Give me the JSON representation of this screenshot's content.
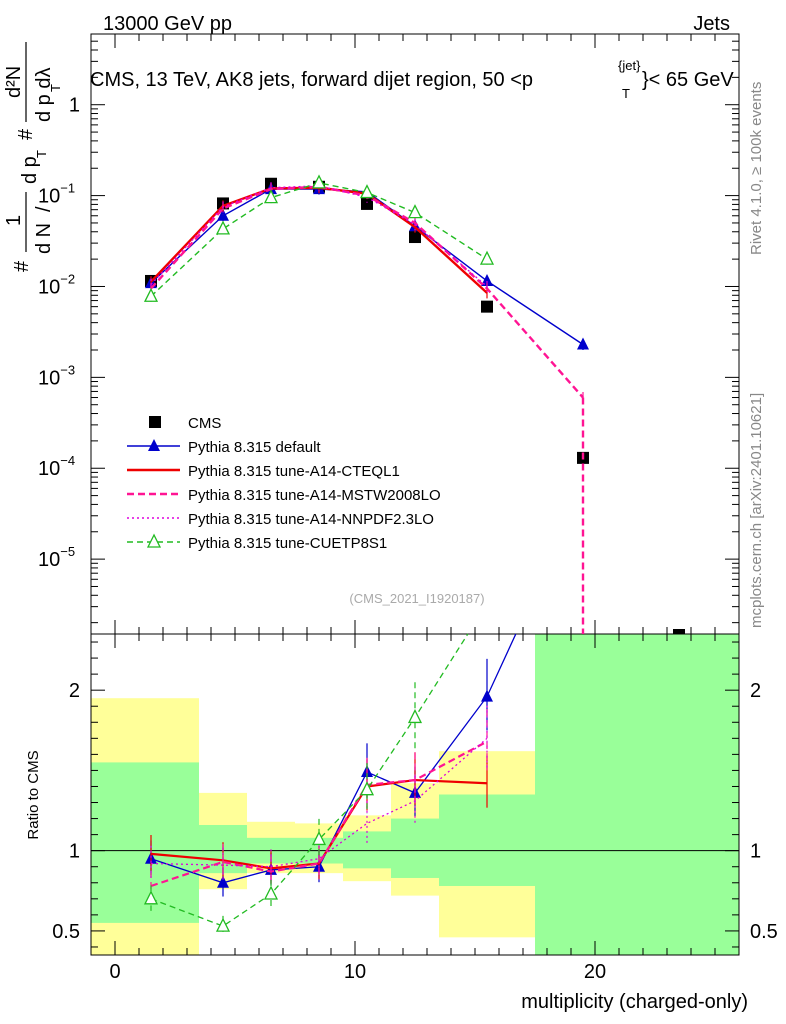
{
  "header": {
    "left": "13000 GeV pp",
    "right": "Jets"
  },
  "title": "CMS, 13 TeV, AK8 jets, forward dijet region, 50 <p",
  "title_sup": "{jet}",
  "title_sub": "T",
  "title_tail": "}< 65 GeV",
  "side": {
    "rivet": "Rivet 4.1.0, ≥ 100k events",
    "mcplots": "mcplots.cern.ch [arXiv:2401.10621]"
  },
  "analysis_tag": "(CMS_2021_I1920187)",
  "ylabel_top": "1/N dN/dp_T d²N/dp_T dλ",
  "ylabel_parts": {
    "hash": "#",
    "one": "1",
    "dN": "d N",
    "slash": "/",
    "dp": "d p",
    "T": "T",
    "d2N": "d²N",
    "dlam": "d p   dλ"
  },
  "ylabel_bottom": "Ratio to CMS",
  "xlabel": "multiplicity (charged-only)",
  "ticks": {
    "x": [
      "0",
      "10",
      "20"
    ],
    "y_top": [
      {
        "base": "10",
        "exp": "−5",
        "v": -5
      },
      {
        "base": "10",
        "exp": "−4",
        "v": -4
      },
      {
        "base": "10",
        "exp": "−3",
        "v": -3
      },
      {
        "base": "10",
        "exp": "−2",
        "v": -2
      },
      {
        "base": "10",
        "exp": "−1",
        "v": -1
      },
      {
        "base": "1",
        "exp": "",
        "v": 0
      }
    ],
    "y_bottom": [
      "0.5",
      "1",
      "2"
    ]
  },
  "legend": [
    {
      "label": "CMS",
      "color": "#000000",
      "dash": "",
      "marker": "square"
    },
    {
      "label": "Pythia 8.315 default",
      "color": "#0000cc",
      "dash": "",
      "marker": "triangle"
    },
    {
      "label": "Pythia 8.315 tune-A14-CTEQL1",
      "color": "#ee0000",
      "dash": "",
      "marker": "none"
    },
    {
      "label": "Pythia 8.315 tune-A14-MSTW2008LO",
      "color": "#ff1493",
      "dash": "7,4",
      "marker": "none"
    },
    {
      "label": "Pythia 8.315 tune-A14-NNPDF2.3LO",
      "color": "#dd00dd",
      "dash": "2,3",
      "marker": "none"
    },
    {
      "label": "Pythia 8.315 tune-CUETP8S1",
      "color": "#22bb22",
      "dash": "6,4",
      "marker": "open-triangle"
    }
  ],
  "chart_data": {
    "type": "line",
    "title": "CMS, 13 TeV, AK8 jets, forward dijet region, 50 < pT{jet} < 65 GeV",
    "xlabel": "multiplicity (charged-only)",
    "ylabel": "1/N dN/dpT d²N/dpT dλ",
    "xlim": [
      -1,
      26
    ],
    "ylim": [
      1.5e-06,
      6
    ],
    "yscale": "log",
    "ratio_ylim": [
      0.35,
      2.35
    ],
    "x": [
      1.5,
      4.5,
      6.5,
      8.5,
      10.5,
      12.5,
      15.5,
      19.5,
      23.5
    ],
    "bins": [
      [
        -1,
        3.5
      ],
      [
        3.5,
        5.5
      ],
      [
        5.5,
        7.5
      ],
      [
        7.5,
        9.5
      ],
      [
        9.5,
        11.5
      ],
      [
        11.5,
        13.5
      ],
      [
        13.5,
        17.5
      ],
      [
        17.5,
        21.5
      ],
      [
        21.5,
        26
      ]
    ],
    "band_yellow": [
      [
        0.35,
        1.95
      ],
      [
        0.76,
        1.36
      ],
      [
        0.86,
        1.18
      ],
      [
        0.86,
        1.17
      ],
      [
        0.81,
        1.22
      ],
      [
        0.72,
        1.42
      ],
      [
        0.46,
        1.62
      ],
      [
        0.35,
        2.35
      ],
      [
        0.35,
        2.35
      ]
    ],
    "band_green": [
      [
        0.55,
        1.55
      ],
      [
        0.86,
        1.16
      ],
      [
        0.92,
        1.08
      ],
      [
        0.92,
        1.08
      ],
      [
        0.89,
        1.12
      ],
      [
        0.83,
        1.2
      ],
      [
        0.78,
        1.35
      ],
      [
        0.35,
        2.35
      ],
      [
        0.35,
        2.35
      ]
    ],
    "series": [
      {
        "name": "CMS",
        "values": [
          0.0115,
          0.082,
          0.135,
          0.125,
          0.081,
          0.035,
          0.006,
          0.00013,
          null
        ]
      },
      {
        "name": "Pythia 8.315 default",
        "x": [
          1.5,
          4.5,
          6.5,
          8.5,
          10.5,
          12.5,
          15.5,
          19.5
        ],
        "values": [
          0.0109,
          0.06,
          0.118,
          0.118,
          0.11,
          0.046,
          0.0115,
          0.0023
        ],
        "ratio_x": [
          1.5,
          4.5,
          6.5,
          8.5,
          10.5,
          12.5,
          15.5,
          16.7
        ],
        "ratio": [
          0.95,
          0.8,
          0.88,
          0.9,
          1.49,
          1.36,
          1.96,
          2.4
        ]
      },
      {
        "name": "Pythia 8.315 tune-A14-CTEQL1",
        "x": [
          1.5,
          4.5,
          6.5,
          8.5,
          10.5,
          12.5,
          15.5
        ],
        "values": [
          0.0113,
          0.077,
          0.12,
          0.122,
          0.105,
          0.045,
          0.0085
        ],
        "ratio_x": [
          1.5,
          4.5,
          6.5,
          8.5,
          10.5,
          12.5,
          15.5
        ],
        "ratio": [
          0.98,
          0.94,
          0.89,
          0.92,
          1.4,
          1.44,
          1.42
        ]
      },
      {
        "name": "Pythia 8.315 tune-A14-MSTW2008LO",
        "x": [
          1.5,
          4.5,
          6.5,
          8.5,
          10.5,
          12.5,
          15.5,
          19.5
        ],
        "values": [
          0.0095,
          0.072,
          0.118,
          0.125,
          0.1,
          0.05,
          0.0095,
          0.0006
        ],
        "ratio_x": [
          1.5,
          4.5,
          6.5,
          8.5,
          10.5,
          12.5,
          15.5
        ],
        "ratio": [
          0.78,
          0.93,
          0.87,
          0.92,
          1.41,
          1.44,
          1.68
        ]
      },
      {
        "name": "Pythia 8.315 tune-A14-NNPDF2.3LO",
        "x": [
          1.5,
          4.5,
          6.5,
          8.5,
          10.5,
          12.5,
          15.5
        ],
        "values": [
          0.0105,
          0.075,
          0.122,
          0.128,
          0.096,
          0.048,
          0.01
        ],
        "ratio_x": [
          1.5,
          4.5,
          6.5,
          8.5,
          10.5,
          12.5,
          15.5
        ],
        "ratio": [
          0.92,
          0.91,
          0.9,
          0.95,
          1.17,
          1.31,
          1.7
        ]
      },
      {
        "name": "Pythia 8.315 tune-CUETP8S1",
        "x": [
          1.5,
          4.5,
          6.5,
          8.5,
          10.5,
          12.5,
          15.5
        ],
        "values": [
          0.0078,
          0.043,
          0.095,
          0.138,
          0.108,
          0.065,
          0.02
        ],
        "ratio_x": [
          1.5,
          4.5,
          6.5,
          8.5,
          10.5,
          12.5,
          14.7
        ],
        "ratio": [
          0.7,
          0.53,
          0.73,
          1.07,
          1.38,
          1.83,
          2.4
        ]
      }
    ]
  }
}
